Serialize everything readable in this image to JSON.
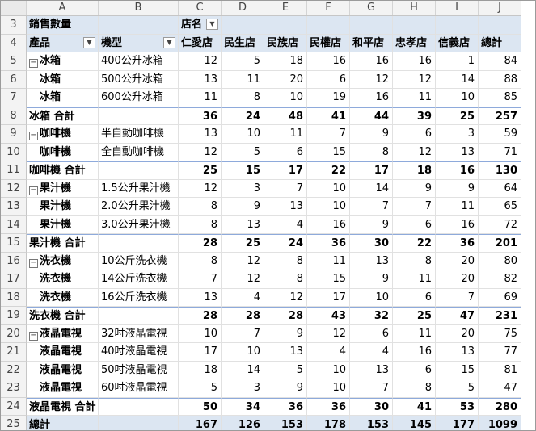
{
  "columns": [
    "A",
    "B",
    "C",
    "D",
    "E",
    "F",
    "G",
    "H",
    "I",
    "J"
  ],
  "row3": {
    "rownum": "3",
    "a": "銷售數量",
    "c": "店名"
  },
  "row4": {
    "rownum": "4",
    "a": "產品",
    "b": "機型",
    "stores": [
      "仁愛店",
      "民生店",
      "民族店",
      "民權店",
      "和平店",
      "忠孝店",
      "信義店"
    ],
    "total": "總計"
  },
  "rows": [
    {
      "rownum": "5",
      "type": "first",
      "a": "冰箱",
      "b": "400公升冰箱",
      "values": [
        "12",
        "5",
        "18",
        "16",
        "16",
        "16",
        "1",
        "84"
      ]
    },
    {
      "rownum": "6",
      "type": "item",
      "a": "冰箱",
      "b": "500公升冰箱",
      "values": [
        "13",
        "11",
        "20",
        "6",
        "12",
        "12",
        "14",
        "88"
      ]
    },
    {
      "rownum": "7",
      "type": "item",
      "a": "冰箱",
      "b": "600公升冰箱",
      "values": [
        "11",
        "8",
        "10",
        "19",
        "16",
        "11",
        "10",
        "85"
      ]
    },
    {
      "rownum": "8",
      "type": "subtotal",
      "a": "冰箱 合計",
      "b": "",
      "values": [
        "36",
        "24",
        "48",
        "41",
        "44",
        "39",
        "25",
        "257"
      ]
    },
    {
      "rownum": "9",
      "type": "first",
      "a": "咖啡機",
      "b": "半自動咖啡機",
      "values": [
        "13",
        "10",
        "11",
        "7",
        "9",
        "6",
        "3",
        "59"
      ]
    },
    {
      "rownum": "10",
      "type": "item",
      "a": "咖啡機",
      "b": "全自動咖啡機",
      "values": [
        "12",
        "5",
        "6",
        "15",
        "8",
        "12",
        "13",
        "71"
      ]
    },
    {
      "rownum": "11",
      "type": "subtotal",
      "a": "咖啡機 合計",
      "b": "",
      "values": [
        "25",
        "15",
        "17",
        "22",
        "17",
        "18",
        "16",
        "130"
      ]
    },
    {
      "rownum": "12",
      "type": "first",
      "a": "果汁機",
      "b": "1.5公升果汁機",
      "values": [
        "12",
        "3",
        "7",
        "10",
        "14",
        "9",
        "9",
        "64"
      ]
    },
    {
      "rownum": "13",
      "type": "item",
      "a": "果汁機",
      "b": "2.0公升果汁機",
      "values": [
        "8",
        "9",
        "13",
        "10",
        "7",
        "7",
        "11",
        "65"
      ]
    },
    {
      "rownum": "14",
      "type": "item",
      "a": "果汁機",
      "b": "3.0公升果汁機",
      "values": [
        "8",
        "13",
        "4",
        "16",
        "9",
        "6",
        "16",
        "72"
      ]
    },
    {
      "rownum": "15",
      "type": "subtotal",
      "a": "果汁機 合計",
      "b": "",
      "values": [
        "28",
        "25",
        "24",
        "36",
        "30",
        "22",
        "36",
        "201"
      ]
    },
    {
      "rownum": "16",
      "type": "first",
      "a": "洗衣機",
      "b": "10公斤洗衣機",
      "values": [
        "8",
        "12",
        "8",
        "11",
        "13",
        "8",
        "20",
        "80"
      ]
    },
    {
      "rownum": "17",
      "type": "item",
      "a": "洗衣機",
      "b": "14公斤洗衣機",
      "values": [
        "7",
        "12",
        "8",
        "15",
        "9",
        "11",
        "20",
        "82"
      ]
    },
    {
      "rownum": "18",
      "type": "item",
      "a": "洗衣機",
      "b": "16公斤洗衣機",
      "values": [
        "13",
        "4",
        "12",
        "17",
        "10",
        "6",
        "7",
        "69"
      ]
    },
    {
      "rownum": "19",
      "type": "subtotal",
      "a": "洗衣機 合計",
      "b": "",
      "values": [
        "28",
        "28",
        "28",
        "43",
        "32",
        "25",
        "47",
        "231"
      ]
    },
    {
      "rownum": "20",
      "type": "first",
      "a": "液晶電視",
      "b": "32吋液晶電視",
      "values": [
        "10",
        "7",
        "9",
        "12",
        "6",
        "11",
        "20",
        "75"
      ]
    },
    {
      "rownum": "21",
      "type": "item",
      "a": "液晶電視",
      "b": "40吋液晶電視",
      "values": [
        "17",
        "10",
        "13",
        "4",
        "4",
        "16",
        "13",
        "77"
      ]
    },
    {
      "rownum": "22",
      "type": "item",
      "a": "液晶電視",
      "b": "50吋液晶電視",
      "values": [
        "18",
        "14",
        "5",
        "10",
        "13",
        "6",
        "15",
        "81"
      ]
    },
    {
      "rownum": "23",
      "type": "item",
      "a": "液晶電視",
      "b": "60吋液晶電視",
      "values": [
        "5",
        "3",
        "9",
        "10",
        "7",
        "8",
        "5",
        "47"
      ]
    },
    {
      "rownum": "24",
      "type": "subtotal",
      "a": "液晶電視 合計",
      "b": "",
      "values": [
        "50",
        "34",
        "36",
        "36",
        "30",
        "41",
        "53",
        "280"
      ]
    },
    {
      "rownum": "25",
      "type": "total",
      "a": "總計",
      "b": "",
      "values": [
        "167",
        "126",
        "153",
        "178",
        "153",
        "145",
        "177",
        "1099"
      ]
    }
  ]
}
